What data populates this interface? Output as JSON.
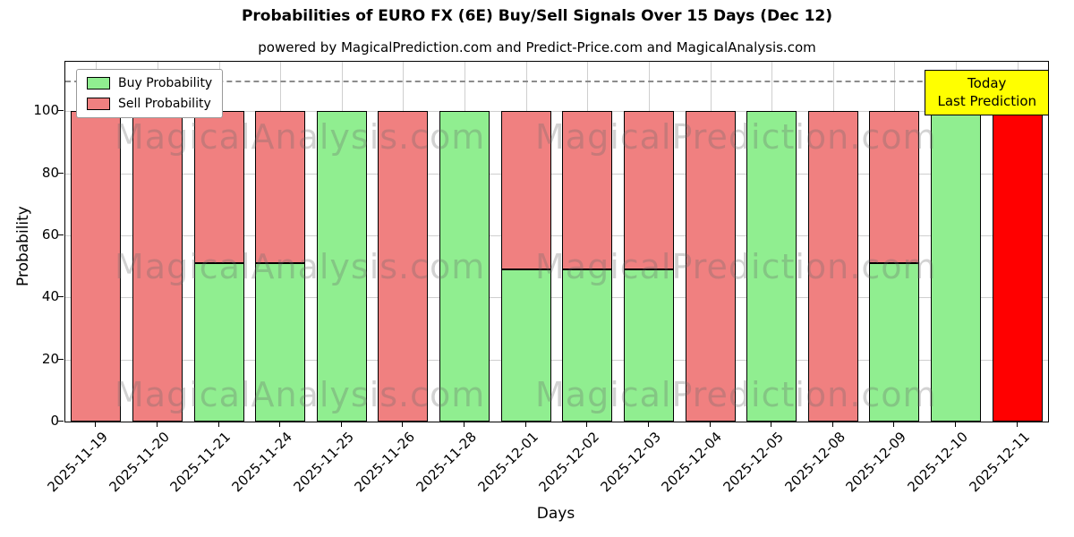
{
  "subtitle": "powered by MagicalPrediction.com and Predict-Price.com and MagicalAnalysis.com",
  "legend": [
    {
      "label": "Buy Probability",
      "color": "#90ee90"
    },
    {
      "label": "Sell Probability",
      "color": "#f08080"
    }
  ],
  "annotation": {
    "line1": "Today",
    "line2": "Last Prediction",
    "bg": "#ffff00"
  },
  "watermarks": [
    "MagicalAnalysis.com",
    "MagicalPrediction.com"
  ],
  "chart_data": {
    "type": "bar",
    "stacked": true,
    "title": "Probabilities of EURO FX (6E) Buy/Sell Signals Over 15 Days (Dec 12)",
    "xlabel": "Days",
    "ylabel": "Probability",
    "categories": [
      "2025-11-19",
      "2025-11-20",
      "2025-11-21",
      "2025-11-24",
      "2025-11-25",
      "2025-11-26",
      "2025-11-28",
      "2025-12-01",
      "2025-12-02",
      "2025-12-03",
      "2025-12-04",
      "2025-12-05",
      "2025-12-08",
      "2025-12-09",
      "2025-12-10",
      "2025-12-11"
    ],
    "series": [
      {
        "name": "Buy Probability",
        "color": "#90ee90",
        "values": [
          0,
          0,
          51,
          51,
          100,
          0,
          100,
          49,
          49,
          49,
          0,
          100,
          0,
          51,
          100,
          0
        ]
      },
      {
        "name": "Sell Probability",
        "color": "#f08080",
        "values": [
          100,
          100,
          49,
          49,
          0,
          100,
          0,
          51,
          51,
          51,
          100,
          0,
          100,
          49,
          0,
          100
        ]
      }
    ],
    "today_index": 15,
    "today_color": "#ff0000",
    "y_ticks": [
      0,
      20,
      40,
      60,
      80,
      100
    ],
    "ylim": [
      0,
      116
    ],
    "dashed_line_y": 110,
    "grid": true,
    "legend_position": "upper-left"
  }
}
